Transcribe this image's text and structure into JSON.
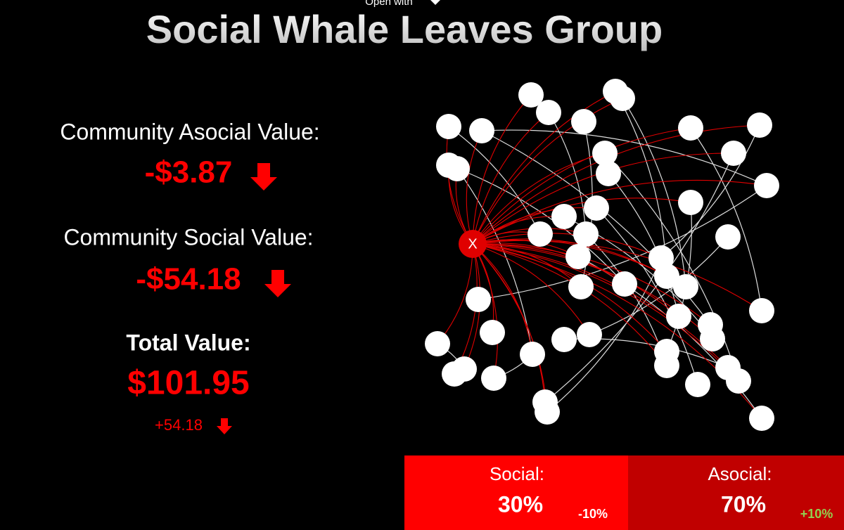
{
  "header": {
    "menu": "Open with",
    "title": "Social Whale Leaves Group"
  },
  "stats": [
    {
      "label": "Community Asocial Value:",
      "value": "-$3.87"
    },
    {
      "label": "Community Social Value:",
      "value": "-$54.18"
    },
    {
      "label": "Total Value:",
      "value": "$101.95",
      "change": "+54.18"
    }
  ],
  "network": {
    "center_label": "X"
  },
  "footer": [
    {
      "label": "Social:",
      "value": "30%",
      "change": "-10%"
    },
    {
      "label": "Asocial:",
      "value": "70%",
      "change": "+10%"
    }
  ]
}
